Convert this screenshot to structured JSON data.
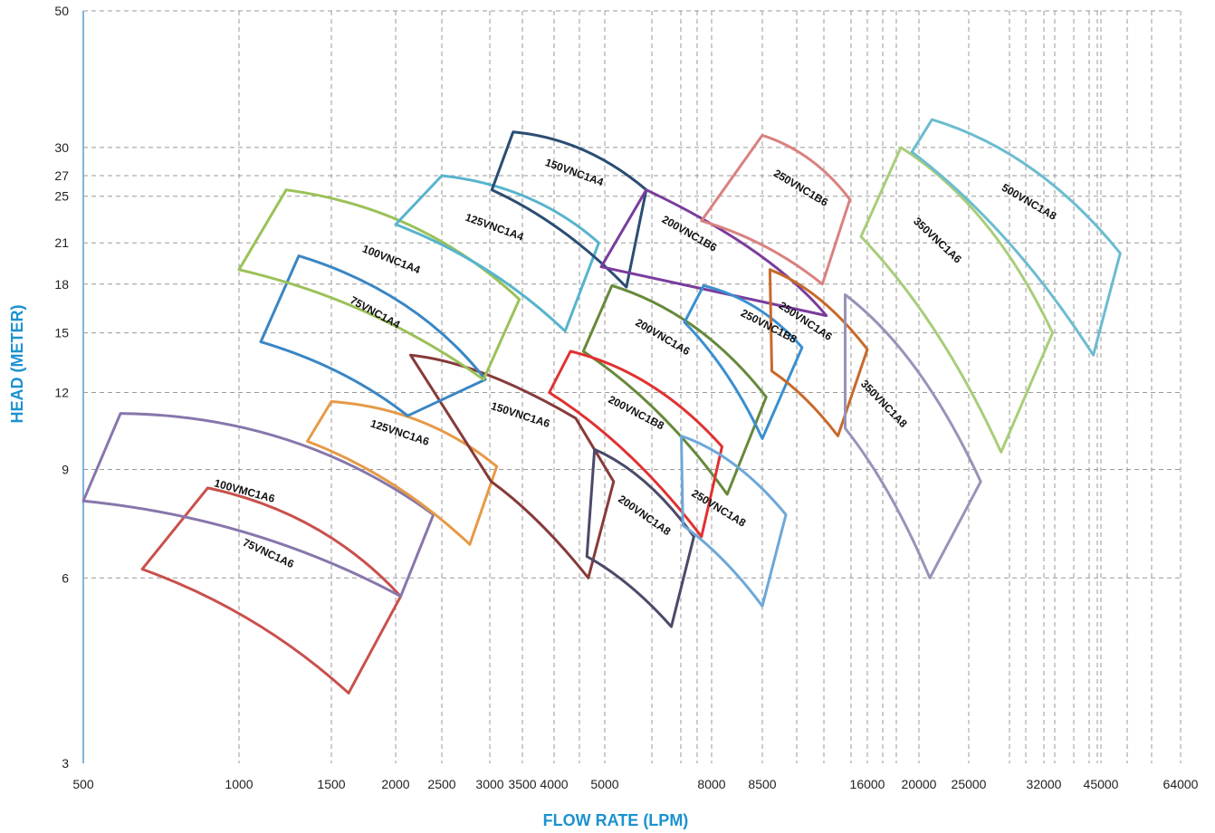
{
  "chart_data": {
    "type": "line",
    "title": "",
    "xlabel": "FLOW RATE (LPM)",
    "ylabel": "HEAD (METER)",
    "x_scale": "custom-nonlinear",
    "y_scale": "log",
    "grid": true,
    "legend": "none (regions labelled directly)",
    "axis_title_color": "#1b92cf",
    "x_ticks": [
      {
        "label": "500",
        "value": 500
      },
      {
        "label": "1000",
        "value": 1000
      },
      {
        "label": "1500",
        "value": 1500
      },
      {
        "label": "2000",
        "value": 2000
      },
      {
        "label": "2500",
        "value": 2500
      },
      {
        "label": "3000",
        "value": 3000
      },
      {
        "label": "3500",
        "value": 3500
      },
      {
        "label": "4000",
        "value": 4000
      },
      {
        "label": "5000",
        "value": 5000
      },
      {
        "label": "8000",
        "value": 8000
      },
      {
        "label": "8500",
        "value": 8500
      },
      {
        "label": "16000",
        "value": 16000
      },
      {
        "label": "20000",
        "value": 20000
      },
      {
        "label": "25000",
        "value": 25000
      },
      {
        "label": "32000",
        "value": 32000
      },
      {
        "label": "45000",
        "value": 45000
      },
      {
        "label": "64000",
        "value": 64000
      }
    ],
    "x_grid_only": [
      4600,
      6000,
      7000,
      7700,
      10000,
      12000,
      14000,
      15000,
      17000,
      28000,
      30000,
      34000,
      38000,
      41000,
      44000,
      50000,
      55000
    ],
    "y_ticks": [
      3,
      6,
      9,
      12,
      15,
      18,
      21,
      25,
      27,
      30,
      50
    ],
    "ylim": [
      3,
      50
    ],
    "xlim": [
      500,
      64000
    ],
    "series": [
      {
        "name": "75VNC1A6",
        "color": "#c9504c",
        "points": [
          [
            870,
            8.4
          ],
          [
            2050,
            5.6
          ],
          [
            1620,
            3.9
          ],
          [
            650,
            6.2
          ]
        ],
        "label_at": [
          1130,
          6.5
        ]
      },
      {
        "name": "100VMC1A6",
        "color": "#8776ab",
        "points": [
          [
            590,
            11.1
          ],
          [
            2400,
            7.6
          ],
          [
            2050,
            5.6
          ],
          [
            470,
            8.0
          ]
        ],
        "label_at": [
          1020,
          8.2
        ]
      },
      {
        "name": "125VNC1A6",
        "color": "#e69a47",
        "points": [
          [
            1500,
            11.6
          ],
          [
            3100,
            9.1
          ],
          [
            2780,
            6.8
          ],
          [
            1350,
            10.0
          ]
        ],
        "label_at": [
          2030,
          10.2
        ]
      },
      {
        "name": "150VNC1A6",
        "color": "#873a3a",
        "points": [
          [
            2150,
            13.8
          ],
          [
            4400,
            10.9
          ],
          [
            5200,
            8.6
          ],
          [
            4650,
            6.0
          ],
          [
            3020,
            8.6
          ]
        ],
        "label_at": [
          3450,
          10.9
        ]
      },
      {
        "name": "75VNC1A4",
        "color": "#3a86c4",
        "points": [
          [
            1300,
            20.0
          ],
          [
            2950,
            12.6
          ],
          [
            2120,
            11.0
          ],
          [
            1100,
            14.5
          ]
        ],
        "label_at": [
          1810,
          16.0
        ]
      },
      {
        "name": "100VNC1A4",
        "color": "#9bc158",
        "points": [
          [
            1230,
            25.6
          ],
          [
            3450,
            17.0
          ],
          [
            2930,
            12.6
          ],
          [
            1000,
            19.0
          ]
        ],
        "label_at": [
          1950,
          19.5
        ]
      },
      {
        "name": "125VNC1A4",
        "color": "#57b4cc",
        "points": [
          [
            2500,
            27.0
          ],
          [
            4870,
            21.0
          ],
          [
            4200,
            15.1
          ],
          [
            2000,
            22.5
          ]
        ],
        "label_at": [
          3050,
          22.0
        ]
      },
      {
        "name": "150VNC1A4",
        "color": "#2b4d73",
        "points": [
          [
            3350,
            31.8
          ],
          [
            6000,
            25.6
          ],
          [
            5500,
            17.8
          ],
          [
            3030,
            25.6
          ]
        ],
        "label_at": [
          4350,
          27.0
        ]
      },
      {
        "name": "200VNC1B6",
        "color": "#7a3c9c",
        "points": [
          [
            6000,
            25.6
          ],
          [
            12500,
            16.0
          ],
          [
            4920,
            19.2
          ]
        ],
        "label_at": [
          7200,
          21.5
        ]
      },
      {
        "name": "250VNC1B6",
        "color": "#d98180",
        "points": [
          [
            8500,
            31.4
          ],
          [
            14400,
            24.7
          ],
          [
            12200,
            18.0
          ],
          [
            7650,
            22.8
          ]
        ],
        "label_at": [
          10600,
          25.5
        ]
      },
      {
        "name": "200VNC1A6",
        "color": "#67893b",
        "points": [
          [
            5160,
            17.9
          ],
          [
            8700,
            11.8
          ],
          [
            8150,
            8.2
          ],
          [
            4550,
            14.0
          ]
        ],
        "label_at": [
          6400,
          14.6
        ]
      },
      {
        "name": "250VNC1B8",
        "color": "#3a8fd0",
        "points": [
          [
            7720,
            17.9
          ],
          [
            10800,
            14.2
          ],
          [
            8500,
            10.1
          ],
          [
            7100,
            15.6
          ]
        ],
        "label_at": [
          8750,
          15.2
        ]
      },
      {
        "name": "250VNC1A6",
        "color": "#c8692a",
        "points": [
          [
            8900,
            19.0
          ],
          [
            16000,
            14.1
          ],
          [
            13400,
            10.2
          ],
          [
            9000,
            13.0
          ]
        ],
        "label_at": [
          10900,
          15.5
        ]
      },
      {
        "name": "200VNC1B8",
        "color": "#e03131",
        "points": [
          [
            4300,
            14.0
          ],
          [
            8100,
            9.8
          ],
          [
            7650,
            7.0
          ],
          [
            3920,
            12.0
          ]
        ],
        "label_at": [
          5700,
          11.0
        ]
      },
      {
        "name": "200VNC1A8",
        "color": "#4a4a6a",
        "points": [
          [
            4780,
            9.7
          ],
          [
            7400,
            7.0
          ],
          [
            6700,
            5.0
          ],
          [
            4620,
            6.5
          ]
        ],
        "label_at": [
          5900,
          7.5
        ]
      },
      {
        "name": "250VNC1A8",
        "color": "#6ea7d8",
        "points": [
          [
            7000,
            10.2
          ],
          [
            9800,
            7.6
          ],
          [
            8500,
            5.4
          ],
          [
            7050,
            7.3
          ]
        ],
        "label_at": [
          8050,
          7.7
        ]
      },
      {
        "name": "350VNC1A8",
        "color": "#9793b8",
        "points": [
          [
            14000,
            17.3
          ],
          [
            26000,
            8.6
          ],
          [
            21000,
            6.0
          ],
          [
            14000,
            10.5
          ]
        ],
        "label_at": [
          17000,
          11.4
        ]
      },
      {
        "name": "350VNC1A6",
        "color": "#a9cd7a",
        "points": [
          [
            18500,
            30.0
          ],
          [
            33700,
            15.0
          ],
          [
            27800,
            9.6
          ],
          [
            15400,
            21.5
          ]
        ],
        "label_at": [
          21500,
          21.0
        ]
      },
      {
        "name": "500VNC1A8",
        "color": "#6bbcd0",
        "points": [
          [
            21200,
            33.3
          ],
          [
            49000,
            20.2
          ],
          [
            43000,
            13.8
          ],
          [
            19400,
            29.5
          ]
        ],
        "label_at": [
          30300,
          24.2
        ]
      }
    ]
  }
}
